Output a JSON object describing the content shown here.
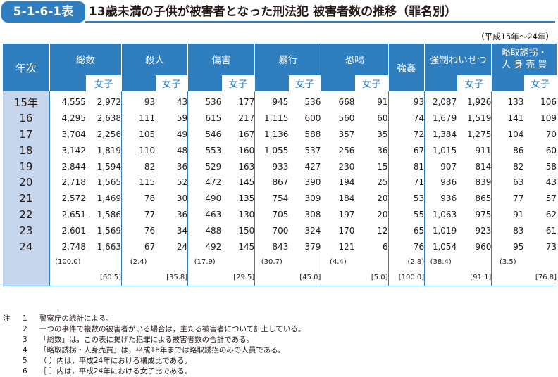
{
  "title": {
    "badge": "5-1-6-1表",
    "text": "13歳未満の子供が被害者となった刑法犯 被害者数の推移（罪名別）"
  },
  "period": "（平成15年〜24年）",
  "header": {
    "year": "年次",
    "women": "女子",
    "crimes": [
      "総数",
      "殺人",
      "傷害",
      "暴行",
      "恐喝",
      "強姦",
      "強制わいせつ",
      "略取誘拐・\n人 身 売 買"
    ]
  },
  "rows": [
    {
      "year": "15年",
      "v": [
        "4,555",
        "2,972",
        "93",
        "43",
        "536",
        "177",
        "945",
        "536",
        "668",
        "91",
        "93",
        "2,087",
        "1,926",
        "133",
        "106"
      ]
    },
    {
      "year": "16",
      "v": [
        "4,295",
        "2,638",
        "111",
        "59",
        "615",
        "217",
        "1,115",
        "600",
        "560",
        "60",
        "74",
        "1,679",
        "1,519",
        "141",
        "109"
      ]
    },
    {
      "year": "17",
      "v": [
        "3,704",
        "2,256",
        "105",
        "49",
        "546",
        "167",
        "1,136",
        "588",
        "357",
        "35",
        "72",
        "1,384",
        "1,275",
        "104",
        "70"
      ]
    },
    {
      "year": "18",
      "v": [
        "3,142",
        "1,819",
        "110",
        "48",
        "553",
        "160",
        "1,055",
        "537",
        "256",
        "36",
        "67",
        "1,015",
        "911",
        "86",
        "60"
      ]
    },
    {
      "year": "19",
      "v": [
        "2,844",
        "1,594",
        "82",
        "36",
        "529",
        "163",
        "933",
        "427",
        "230",
        "15",
        "81",
        "907",
        "814",
        "82",
        "58"
      ]
    },
    {
      "year": "20",
      "v": [
        "2,718",
        "1,565",
        "115",
        "52",
        "472",
        "145",
        "867",
        "390",
        "194",
        "25",
        "71",
        "936",
        "839",
        "63",
        "43"
      ]
    },
    {
      "year": "21",
      "v": [
        "2,572",
        "1,469",
        "78",
        "30",
        "490",
        "135",
        "754",
        "309",
        "184",
        "20",
        "53",
        "936",
        "865",
        "77",
        "57"
      ]
    },
    {
      "year": "22",
      "v": [
        "2,651",
        "1,586",
        "77",
        "36",
        "463",
        "130",
        "705",
        "308",
        "197",
        "20",
        "55",
        "1,063",
        "975",
        "91",
        "62"
      ]
    },
    {
      "year": "23",
      "v": [
        "2,601",
        "1,569",
        "76",
        "34",
        "488",
        "150",
        "700",
        "324",
        "170",
        "12",
        "65",
        "1,019",
        "923",
        "83",
        "61"
      ]
    },
    {
      "year": "24",
      "v": [
        "2,748",
        "1,663",
        "67",
        "24",
        "492",
        "145",
        "843",
        "379",
        "121",
        "6",
        "76",
        "1,054",
        "960",
        "95",
        "73"
      ]
    }
  ],
  "ratio_paren": [
    "(100.0)",
    "(2.4)",
    "(17.9)",
    "(30.7)",
    "(4.4)",
    "(2.8)",
    "(38.4)",
    "(3.5)"
  ],
  "ratio_bracket": [
    "[60.5]",
    "[35.8]",
    "[29.5]",
    "[45.0]",
    "[5.0]",
    "[100.0]",
    "[91.1]",
    "[76.8]"
  ],
  "notes": {
    "label": "注",
    "items": [
      {
        "no": "1",
        "text": "警察庁の統計による。"
      },
      {
        "no": "2",
        "text": "一つの事件で複数の被害者がいる場合は，主たる被害者について計上している。"
      },
      {
        "no": "3",
        "text": "「総数」は，この表に掲げた犯罪による被害者数の合計である。"
      },
      {
        "no": "4",
        "text": "「略取誘拐・人身売買」は，平成16年までは略取誘拐のみの人員である。"
      },
      {
        "no": "5",
        "text": "（ ）内は，平成24年における構成比である。"
      },
      {
        "no": "6",
        "text": "［ ］内は，平成24年における女子比である。"
      }
    ]
  }
}
